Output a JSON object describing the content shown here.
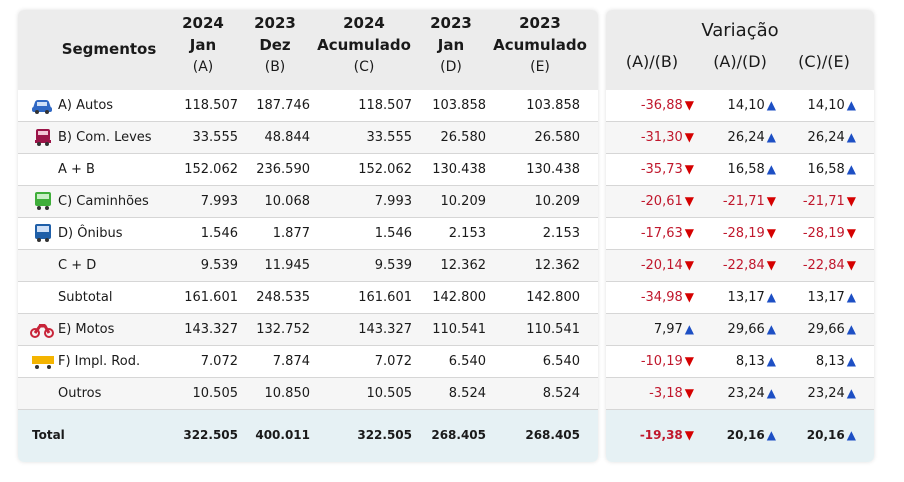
{
  "header": {
    "segments_label": "Segmentos",
    "columns": [
      {
        "year": "2024",
        "period": "Jan",
        "code": "(A)"
      },
      {
        "year": "2023",
        "period": "Dez",
        "code": "(B)"
      },
      {
        "year": "2024",
        "period": "Acumulado",
        "code": "(C)"
      },
      {
        "year": "2023",
        "period": "Jan",
        "code": "(D)"
      },
      {
        "year": "2023",
        "period": "Acumulado",
        "code": "(E)"
      }
    ],
    "variation_title": "Variação",
    "variation_columns": [
      "(A)/(B)",
      "(A)/(D)",
      "(C)/(E)"
    ]
  },
  "rows": [
    {
      "label": "A) Autos",
      "icon": "car-icon",
      "values": [
        "118.507",
        "187.746",
        "118.507",
        "103.858",
        "103.858"
      ],
      "variations": [
        "-36,88",
        "14,10",
        "14,10"
      ]
    },
    {
      "label": "B) Com. Leves",
      "icon": "pickup-truck-icon",
      "values": [
        "33.555",
        "48.844",
        "33.555",
        "26.580",
        "26.580"
      ],
      "variations": [
        "-31,30",
        "26,24",
        "26,24"
      ]
    },
    {
      "label": "A + B",
      "icon": "",
      "values": [
        "152.062",
        "236.590",
        "152.062",
        "130.438",
        "130.438"
      ],
      "variations": [
        "-35,73",
        "16,58",
        "16,58"
      ]
    },
    {
      "label": "C) Caminhões",
      "icon": "truck-icon",
      "values": [
        "7.993",
        "10.068",
        "7.993",
        "10.209",
        "10.209"
      ],
      "variations": [
        "-20,61",
        "-21,71",
        "-21,71"
      ]
    },
    {
      "label": "D) Ônibus",
      "icon": "bus-icon",
      "values": [
        "1.546",
        "1.877",
        "1.546",
        "2.153",
        "2.153"
      ],
      "variations": [
        "-17,63",
        "-28,19",
        "-28,19"
      ]
    },
    {
      "label": "C + D",
      "icon": "",
      "values": [
        "9.539",
        "11.945",
        "9.539",
        "12.362",
        "12.362"
      ],
      "variations": [
        "-20,14",
        "-22,84",
        "-22,84"
      ]
    },
    {
      "label": "Subtotal",
      "icon": "",
      "values": [
        "161.601",
        "248.535",
        "161.601",
        "142.800",
        "142.800"
      ],
      "variations": [
        "-34,98",
        "13,17",
        "13,17"
      ]
    },
    {
      "label": "E) Motos",
      "icon": "motorcycle-icon",
      "values": [
        "143.327",
        "132.752",
        "143.327",
        "110.541",
        "110.541"
      ],
      "variations": [
        "7,97",
        "29,66",
        "29,66"
      ]
    },
    {
      "label": "F) Impl. Rod.",
      "icon": "trailer-icon",
      "values": [
        "7.072",
        "7.874",
        "7.072",
        "6.540",
        "6.540"
      ],
      "variations": [
        "-10,19",
        "8,13",
        "8,13"
      ]
    },
    {
      "label": "Outros",
      "icon": "",
      "values": [
        "10.505",
        "10.850",
        "10.505",
        "8.524",
        "8.524"
      ],
      "variations": [
        "-3,18",
        "23,24",
        "23,24"
      ]
    }
  ],
  "total": {
    "label": "Total",
    "values": [
      "322.505",
      "400.011",
      "322.505",
      "268.405",
      "268.405"
    ],
    "variations": [
      "-19,38",
      "20,16",
      "20,16"
    ]
  },
  "colors": {
    "negative_text": "#c0172c",
    "arrow_down": "#d50000",
    "arrow_up": "#1d4fc4",
    "header_bg": "#ececec",
    "total_bg": "#e6f1f4"
  }
}
